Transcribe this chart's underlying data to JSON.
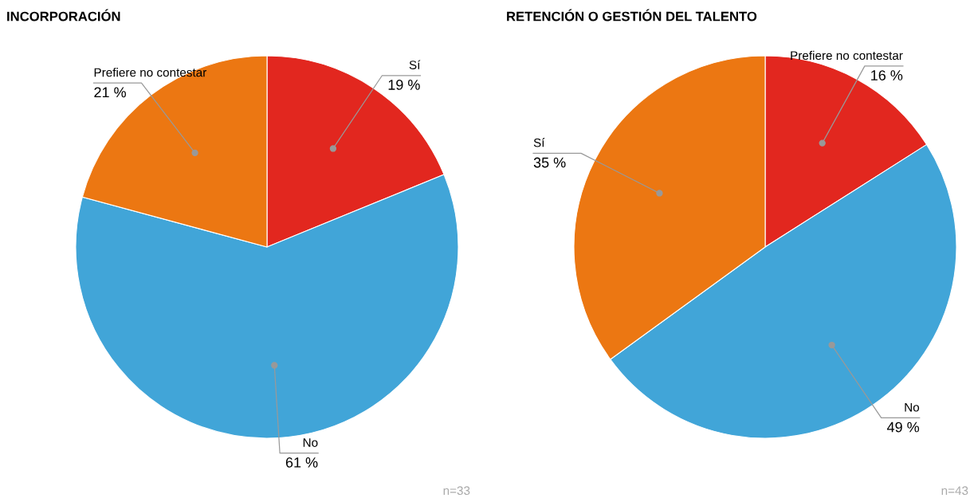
{
  "chart_data": [
    {
      "type": "pie",
      "title": "INCORPORACIÓN",
      "categories": [
        "Sí",
        "No",
        "Prefiere no contestar"
      ],
      "values": [
        19,
        61,
        21
      ],
      "value_labels": [
        "19 %",
        "61 %",
        "21 %"
      ],
      "colors": [
        "#e2271f",
        "#41a5d8",
        "#ec7712"
      ],
      "annotations": [
        "n=33"
      ],
      "legend": false
    },
    {
      "type": "pie",
      "title": "RETENCIÓN O GESTIÓN DEL TALENTO",
      "categories": [
        "Prefiere no contestar",
        "No",
        "Sí"
      ],
      "values": [
        16,
        49,
        35
      ],
      "value_labels": [
        "16 %",
        "49 %",
        "35 %"
      ],
      "colors": [
        "#e2271f",
        "#41a5d8",
        "#ec7712"
      ],
      "annotations": [
        "n=43"
      ],
      "legend": false
    }
  ]
}
